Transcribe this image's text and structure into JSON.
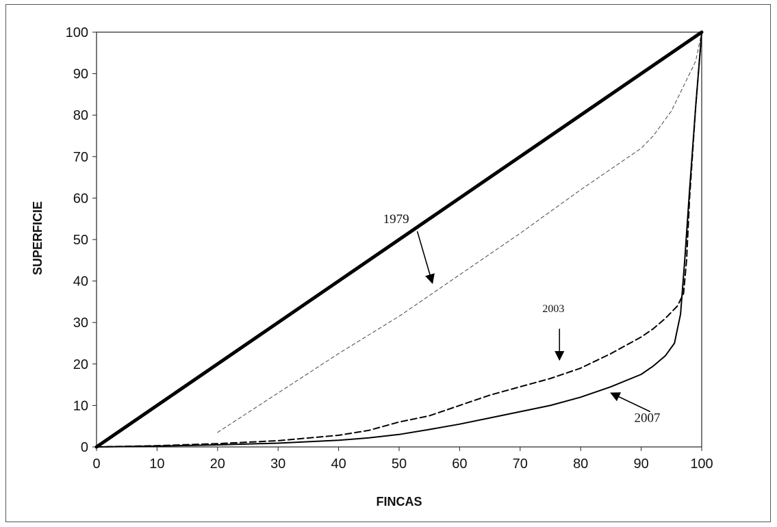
{
  "chart_data": {
    "type": "line",
    "xlabel": "FINCAS",
    "ylabel": "SUPERFICIE",
    "xlim": [
      0,
      100
    ],
    "ylim": [
      0,
      100
    ],
    "xticks": [
      "0",
      "10",
      "20",
      "30",
      "40",
      "50",
      "60",
      "70",
      "80",
      "90",
      "100"
    ],
    "yticks": [
      "0",
      "10",
      "20",
      "30",
      "40",
      "50",
      "60",
      "70",
      "80",
      "90",
      "100"
    ],
    "grid": false,
    "series": [
      {
        "name": "equality",
        "style": "thick-solid",
        "color": "#000000",
        "x": [
          0,
          100
        ],
        "y": [
          0,
          100
        ]
      },
      {
        "name": "1979",
        "style": "thin-dashed",
        "color": "#444444",
        "x": [
          20,
          30,
          40,
          50,
          60,
          70,
          80,
          90,
          92,
          95,
          97,
          99,
          100
        ],
        "y": [
          3.5,
          13,
          22.5,
          31.5,
          41.5,
          51.5,
          62,
          72,
          75,
          81,
          87,
          93,
          100
        ]
      },
      {
        "name": "2003",
        "style": "dashed",
        "color": "#000000",
        "x": [
          0,
          10,
          20,
          30,
          40,
          45,
          50,
          55,
          60,
          65,
          70,
          75,
          80,
          85,
          90,
          92,
          94,
          96,
          97,
          97.5,
          98,
          99,
          100
        ],
        "y": [
          0,
          0.3,
          0.8,
          1.5,
          2.8,
          4,
          6,
          7.5,
          10,
          12.5,
          14.5,
          16.5,
          19,
          22.5,
          26.5,
          28.5,
          31,
          34,
          37,
          45,
          60,
          82,
          100
        ]
      },
      {
        "name": "2007",
        "style": "solid",
        "color": "#000000",
        "x": [
          0,
          10,
          20,
          30,
          40,
          45,
          50,
          55,
          60,
          65,
          70,
          75,
          80,
          85,
          90,
          92,
          94,
          95.5,
          96.5,
          97.2,
          98,
          99,
          100
        ],
        "y": [
          0,
          0.2,
          0.5,
          0.9,
          1.6,
          2.2,
          3,
          4.2,
          5.5,
          7,
          8.5,
          10,
          12,
          14.5,
          17.5,
          19.5,
          22,
          25,
          32,
          45,
          62,
          82,
          100
        ]
      }
    ],
    "annotations": [
      {
        "label": "1979",
        "text_at": [
          49.5,
          54
        ],
        "arrow_from": [
          53,
          52
        ],
        "arrow_to": [
          55.5,
          39.5
        ],
        "size": "normal"
      },
      {
        "label": "2003",
        "text_at": [
          75.5,
          32.5
        ],
        "arrow_from": [
          76.5,
          28.5
        ],
        "arrow_to": [
          76.5,
          21
        ],
        "size": "small"
      },
      {
        "label": "2007",
        "text_at": [
          91,
          6
        ],
        "arrow_from": [
          91.5,
          8.5
        ],
        "arrow_to": [
          85,
          13
        ],
        "size": "normal"
      }
    ]
  }
}
